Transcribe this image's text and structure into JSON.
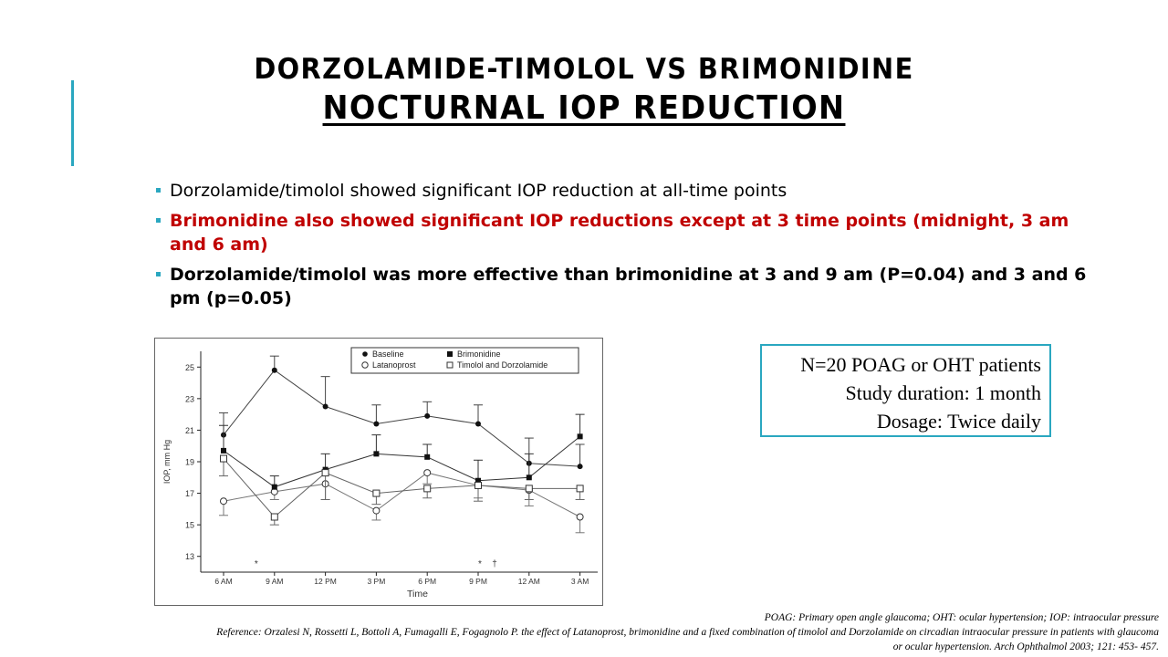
{
  "slide": {
    "title_line1": "DORZOLAMIDE-TIMOLOL VS BRIMONIDINE",
    "title_line2": "NOCTURNAL IOP REDUCTION",
    "accent_color": "#2aa7c0",
    "highlight_color": "#c00000"
  },
  "bullets": [
    "Dorzolamide/timolol showed significant IOP reduction at all-time points",
    "Brimonidine also showed significant IOP reductions except at 3 time points (midnight, 3 am and 6 am)",
    "Dorzolamide/timolol was more effective than brimonidine at 3 and 9 am (P=0.04) and 3 and 6 pm (p=0.05)"
  ],
  "info_box": {
    "line1": "N=20 POAG or OHT patients",
    "line2": "Study duration: 1 month",
    "line3": "Dosage: Twice daily"
  },
  "footnotes": {
    "abbreviations": "POAG: Primary open angle glaucoma; OHT: ocular hypertension; IOP: intraocular pressure",
    "reference": "Reference: Orzalesi N, Rossetti L, Bottoli A, Fumagalli E, Fogagnolo P. the effect of Latanoprost, brimonidine and a fixed combination of timolol and Dorzolamide on circadian intraocular pressure in patients with glaucoma or ocular hypertension. Arch Ophthalmol 2003; 121: 453- 457."
  },
  "chart_data": {
    "type": "line",
    "xlabel": "Time",
    "ylabel": "IOP, mm Hg",
    "categories": [
      "6 AM",
      "9 AM",
      "12 PM",
      "3 PM",
      "6 PM",
      "9 PM",
      "12 AM",
      "3 AM"
    ],
    "ylim": [
      12,
      26
    ],
    "yticks": [
      13,
      15,
      17,
      19,
      21,
      23,
      25
    ],
    "legend_position": "top",
    "significance_marks": [
      {
        "category": "9 AM",
        "label": "*"
      },
      {
        "category": "9 PM",
        "label": "*"
      },
      {
        "category": "9 PM",
        "label": "†"
      }
    ],
    "series": [
      {
        "name": "Baseline",
        "marker": "filled-circle",
        "values": [
          20.7,
          24.8,
          22.5,
          21.4,
          21.9,
          21.4,
          18.9,
          18.7
        ],
        "errors": [
          1.4,
          0.9,
          1.9,
          1.2,
          0.9,
          1.2,
          1.6,
          1.4
        ]
      },
      {
        "name": "Latanoprost",
        "marker": "open-circle",
        "values": [
          16.5,
          17.1,
          17.6,
          15.9,
          18.3,
          17.5,
          17.2,
          15.5
        ],
        "errors": [
          0.9,
          0.5,
          1.0,
          0.6,
          0.7,
          0.8,
          1.0,
          1.0
        ]
      },
      {
        "name": "Brimonidine",
        "marker": "filled-square",
        "values": [
          19.7,
          17.4,
          18.5,
          19.5,
          19.3,
          17.8,
          18.0,
          20.6
        ],
        "errors": [
          1.6,
          0.7,
          1.0,
          1.2,
          0.8,
          1.3,
          1.5,
          1.4
        ]
      },
      {
        "name": "Timolol and Dorzolamide",
        "marker": "open-square",
        "values": [
          19.2,
          15.5,
          18.3,
          17.0,
          17.3,
          17.5,
          17.3,
          17.3
        ],
        "errors": [
          1.1,
          0.5,
          1.7,
          0.7,
          0.6,
          1.0,
          0.7,
          0.7
        ]
      }
    ]
  }
}
